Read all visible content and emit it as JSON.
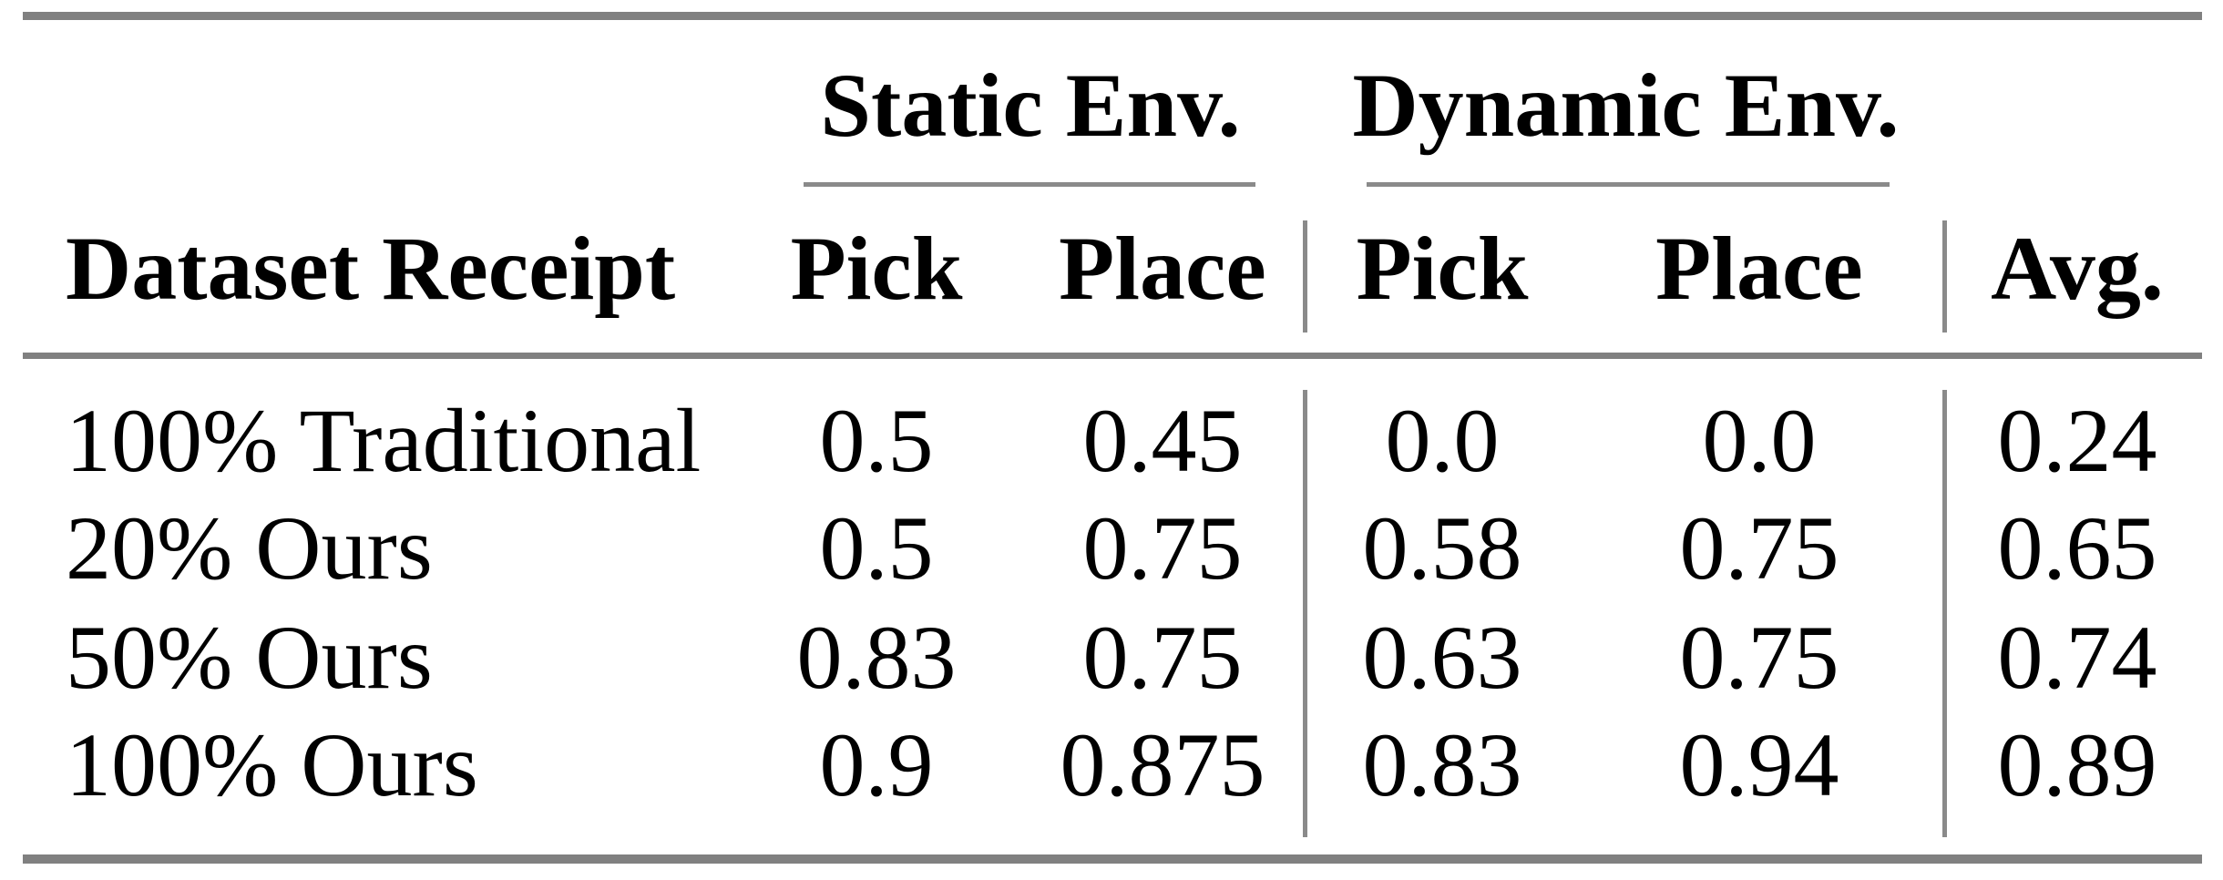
{
  "table": {
    "groups": {
      "static": "Static Env.",
      "dynamic": "Dynamic Env."
    },
    "headers": {
      "dataset": "Dataset Receipt",
      "static_pick": "Pick",
      "static_place": "Place",
      "dynamic_pick": "Pick",
      "dynamic_place": "Place",
      "avg": "Avg."
    },
    "rows": [
      {
        "label": "100% Traditional",
        "static_pick": "0.5",
        "static_place": "0.45",
        "dynamic_pick": "0.0",
        "dynamic_place": "0.0",
        "avg": "0.24"
      },
      {
        "label": "20% Ours",
        "static_pick": "0.5",
        "static_place": "0.75",
        "dynamic_pick": "0.58",
        "dynamic_place": "0.75",
        "avg": "0.65"
      },
      {
        "label": "50% Ours",
        "static_pick": "0.83",
        "static_place": "0.75",
        "dynamic_pick": "0.63",
        "dynamic_place": "0.75",
        "avg": "0.74"
      },
      {
        "label": "100% Ours",
        "static_pick": "0.9",
        "static_place": "0.875",
        "dynamic_pick": "0.83",
        "dynamic_place": "0.94",
        "avg": "0.89"
      }
    ],
    "colors": {
      "rule": "#808080",
      "divider": "#8a8a8a",
      "text": "#000000",
      "background": "#ffffff"
    }
  }
}
